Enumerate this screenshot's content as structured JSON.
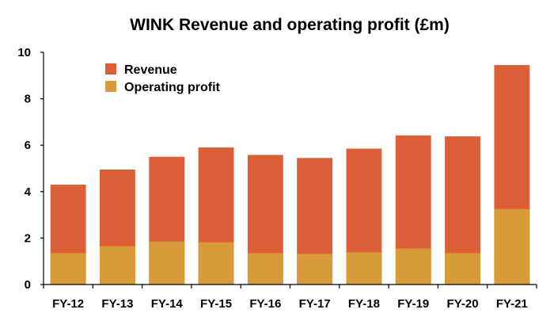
{
  "chart_data": {
    "type": "bar",
    "stacked": false,
    "overlapping": true,
    "title": "WINK Revenue and operating profit (£m)",
    "xlabel": "",
    "ylabel": "",
    "categories": [
      "FY-12",
      "FY-13",
      "FY-14",
      "FY-15",
      "FY-16",
      "FY-17",
      "FY-18",
      "FY-19",
      "FY-20",
      "FY-21"
    ],
    "series": [
      {
        "name": "Revenue",
        "color": "#DC5F38",
        "values": [
          4.3,
          4.95,
          5.5,
          5.9,
          5.58,
          5.45,
          5.85,
          6.42,
          6.38,
          9.45
        ]
      },
      {
        "name": "Operating profit",
        "color": "#D89B3A",
        "values": [
          1.35,
          1.65,
          1.85,
          1.82,
          1.35,
          1.32,
          1.38,
          1.55,
          1.35,
          3.25
        ]
      }
    ],
    "ylim": [
      0,
      10
    ],
    "yticks": [
      0,
      2,
      4,
      6,
      8,
      10
    ],
    "grid": false,
    "legend_position": "top-left"
  }
}
